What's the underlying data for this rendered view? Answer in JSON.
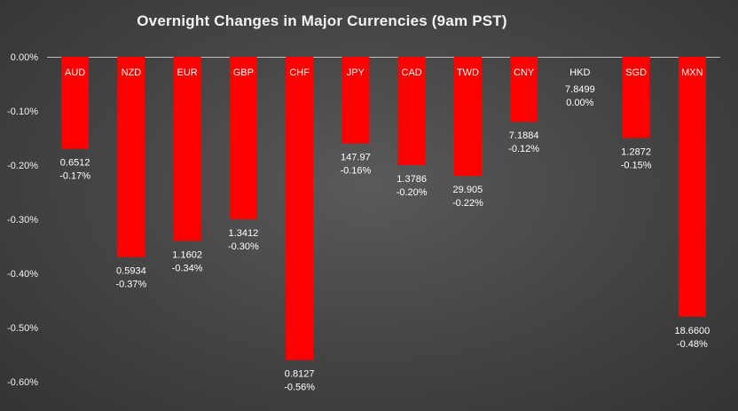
{
  "chart_data": {
    "type": "bar",
    "title": "Overnight Changes in Major Currencies (9am PST)",
    "xlabel": "",
    "ylabel": "",
    "ylim": [
      -0.6,
      0.0
    ],
    "yticks": [
      0.0,
      -0.1,
      -0.2,
      -0.3,
      -0.4,
      -0.5,
      -0.6
    ],
    "ytick_labels": [
      "0.00%",
      "-0.10%",
      "-0.20%",
      "-0.30%",
      "-0.40%",
      "-0.50%",
      "-0.60%"
    ],
    "grid": false,
    "legend": "none",
    "bar_color": "#ff0000",
    "categories": [
      "AUD",
      "NZD",
      "EUR",
      "GBP",
      "CHF",
      "JPY",
      "CAD",
      "TWD",
      "CNY",
      "HKD",
      "SGD",
      "MXN"
    ],
    "values": [
      -0.17,
      -0.37,
      -0.34,
      -0.3,
      -0.56,
      -0.16,
      -0.2,
      -0.22,
      -0.12,
      0.0,
      -0.15,
      -0.48
    ],
    "rates": [
      "0.6512",
      "0.5934",
      "1.1602",
      "1.3412",
      "0.8127",
      "147.97",
      "1.3786",
      "29.905",
      "7.1884",
      "7.8499",
      "1.2872",
      "18.6600"
    ],
    "pct_labels": [
      "-0.17%",
      "-0.37%",
      "-0.34%",
      "-0.30%",
      "-0.56%",
      "-0.16%",
      "-0.20%",
      "-0.22%",
      "-0.12%",
      "0.00%",
      "-0.15%",
      "-0.48%"
    ]
  }
}
